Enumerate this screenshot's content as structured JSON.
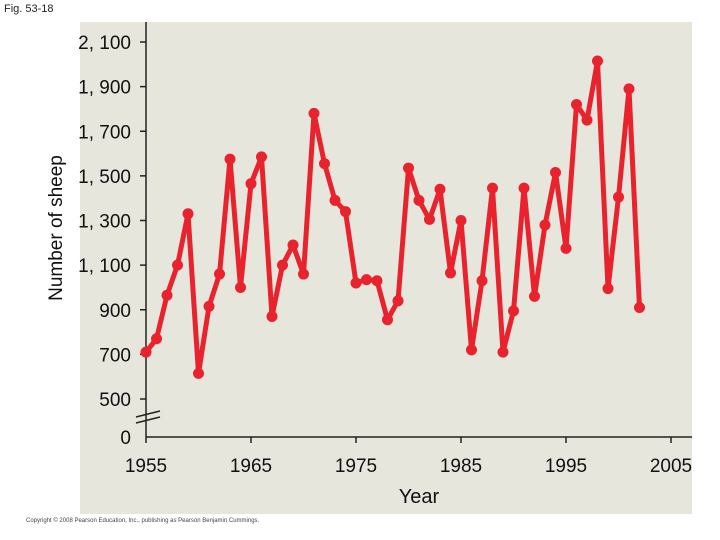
{
  "figure_label": "Fig. 53-18",
  "copyright": "Copyright © 2008 Pearson Education, Inc., publishing as Pearson Benjamin Cummings.",
  "colors": {
    "panel": "#e6e6dc",
    "line": "#e8232e",
    "axis": "#222222"
  },
  "chart_data": {
    "type": "line",
    "title": "",
    "xlabel": "Year",
    "ylabel": "Number of sheep",
    "xlim": [
      1955,
      2007
    ],
    "ylim": [
      500,
      2100
    ],
    "axis_break": true,
    "x_ticks": [
      1955,
      1965,
      1975,
      1985,
      1995,
      2005
    ],
    "x_tick_labels": [
      "1955",
      "1965",
      "1975",
      "1985",
      "1995",
      "2005"
    ],
    "y_ticks": [
      0,
      500,
      700,
      900,
      1100,
      1300,
      1500,
      1700,
      1900,
      2100
    ],
    "y_tick_labels": [
      "0",
      "500",
      "700",
      "900",
      "1, 100",
      "1, 300",
      "1, 500",
      "1, 700",
      "1, 900",
      "2, 100"
    ],
    "series": [
      {
        "name": "Number of sheep",
        "x": [
          1955,
          1956,
          1957,
          1958,
          1959,
          1960,
          1961,
          1962,
          1963,
          1964,
          1965,
          1966,
          1967,
          1968,
          1969,
          1970,
          1971,
          1972,
          1973,
          1974,
          1975,
          1976,
          1977,
          1978,
          1979,
          1980,
          1981,
          1982,
          1983,
          1984,
          1985,
          1986,
          1987,
          1988,
          1989,
          1990,
          1991,
          1992,
          1993,
          1994,
          1995,
          1996,
          1997,
          1998,
          1999,
          2000,
          2001,
          2002
        ],
        "values": [
          710,
          770,
          965,
          1100,
          1330,
          615,
          915,
          1060,
          1575,
          1000,
          1465,
          1585,
          870,
          1100,
          1190,
          1060,
          1780,
          1555,
          1390,
          1340,
          1020,
          1035,
          1030,
          855,
          940,
          1535,
          1390,
          1305,
          1440,
          1065,
          1300,
          720,
          1030,
          1445,
          710,
          895,
          1445,
          960,
          1280,
          1515,
          1175,
          1820,
          1750,
          2015,
          995,
          1405,
          1890,
          910
        ]
      }
    ]
  }
}
